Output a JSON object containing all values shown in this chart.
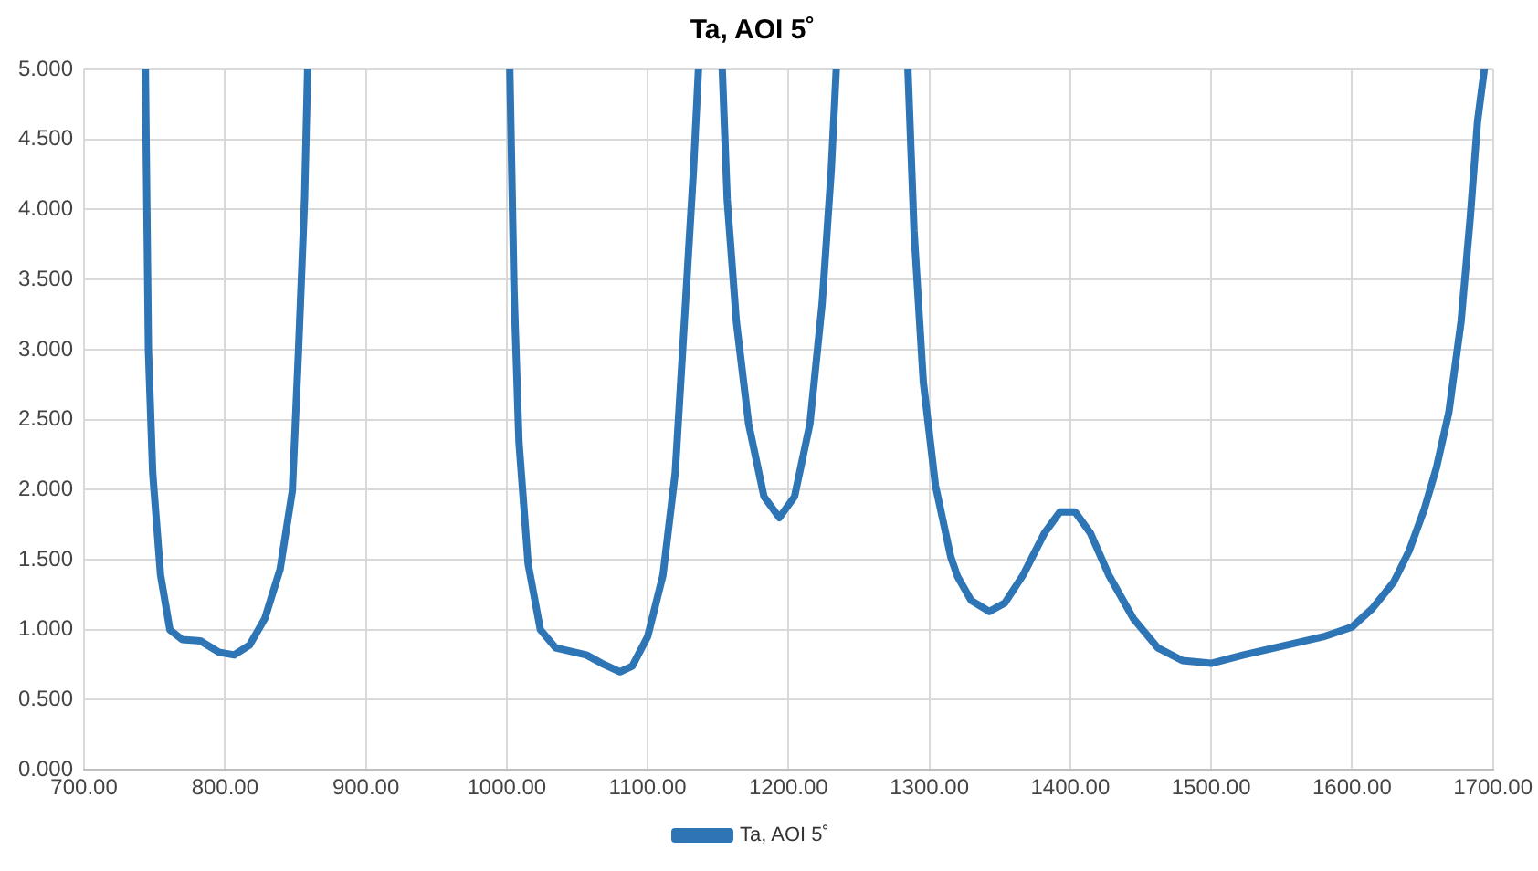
{
  "chart_data": {
    "type": "line",
    "title": "Ta, AOI 5˚",
    "x": [
      743.5,
      745.7,
      748.7,
      754.3,
      760.9,
      769.6,
      782.6,
      795.7,
      806.5,
      817.4,
      828.3,
      839.1,
      847.8,
      852.2,
      856.5,
      858.7,
      930,
      1002.2,
      1005.2,
      1008.7,
      1015.2,
      1023.9,
      1034.8,
      1056.5,
      1067.4,
      1080.4,
      1089.1,
      1100,
      1110.9,
      1119.6,
      1126.1,
      1132.6,
      1136.1,
      1145,
      1153,
      1156.5,
      1163,
      1171.7,
      1182.6,
      1193.5,
      1204.3,
      1215.2,
      1223.9,
      1230.4,
      1233.9,
      1260,
      1284.8,
      1289.1,
      1295.7,
      1304.3,
      1315.2,
      1320,
      1329.6,
      1342.6,
      1353.5,
      1366.5,
      1381.7,
      1392.6,
      1403.5,
      1414.3,
      1427.4,
      1444.8,
      1462.2,
      1479.6,
      1500,
      1523,
      1553.5,
      1579.6,
      1600,
      1614.3,
      1629.6,
      1640.4,
      1651.3,
      1660,
      1668.7,
      1677.4,
      1683.9,
      1689.1,
      1693.9
    ],
    "series": [
      {
        "name": "Ta, AOI 5˚",
        "color": "#2e75b6",
        "values": [
          5,
          2.99,
          2.12,
          1.39,
          1.0,
          0.93,
          0.92,
          0.84,
          0.82,
          0.89,
          1.08,
          1.43,
          1.99,
          2.99,
          4.07,
          5,
          null,
          5,
          3.42,
          2.34,
          1.47,
          1.0,
          0.87,
          0.82,
          0.76,
          0.7,
          0.74,
          0.95,
          1.39,
          2.12,
          3.2,
          4.29,
          5,
          null,
          5,
          4.07,
          3.2,
          2.47,
          1.95,
          1.8,
          1.95,
          2.47,
          3.33,
          4.29,
          5,
          null,
          5,
          3.85,
          2.77,
          2.03,
          1.52,
          1.38,
          1.21,
          1.13,
          1.19,
          1.39,
          1.69,
          1.84,
          1.84,
          1.69,
          1.39,
          1.08,
          0.87,
          0.78,
          0.76,
          0.82,
          0.89,
          0.95,
          1.02,
          1.15,
          1.34,
          1.56,
          1.86,
          2.16,
          2.55,
          3.2,
          3.94,
          4.63,
          5
        ]
      }
    ],
    "xlim": [
      700,
      1700
    ],
    "xticks": [
      {
        "value": 700,
        "label": "700.00"
      },
      {
        "value": 800,
        "label": "800.00"
      },
      {
        "value": 900,
        "label": "900.00"
      },
      {
        "value": 1000,
        "label": "1000.00"
      },
      {
        "value": 1100,
        "label": "1100.00"
      },
      {
        "value": 1200,
        "label": "1200.00"
      },
      {
        "value": 1300,
        "label": "1300.00"
      },
      {
        "value": 1400,
        "label": "1400.00"
      },
      {
        "value": 1500,
        "label": "1500.00"
      },
      {
        "value": 1600,
        "label": "1600.00"
      },
      {
        "value": 1700,
        "label": "1700.00"
      }
    ],
    "ylim": [
      0,
      5
    ],
    "yticks": [
      {
        "value": 0,
        "label": "0.000"
      },
      {
        "value": 0.5,
        "label": "0.500"
      },
      {
        "value": 1,
        "label": "1.000"
      },
      {
        "value": 1.5,
        "label": "1.500"
      },
      {
        "value": 2,
        "label": "2.000"
      },
      {
        "value": 2.5,
        "label": "2.500"
      },
      {
        "value": 3,
        "label": "3.000"
      },
      {
        "value": 3.5,
        "label": "3.500"
      },
      {
        "value": 4,
        "label": "4.000"
      },
      {
        "value": 4.5,
        "label": "4.500"
      },
      {
        "value": 5,
        "label": "5.000"
      }
    ],
    "grid": true,
    "legend": "bottom",
    "marker": "none",
    "line_style": "solid"
  }
}
